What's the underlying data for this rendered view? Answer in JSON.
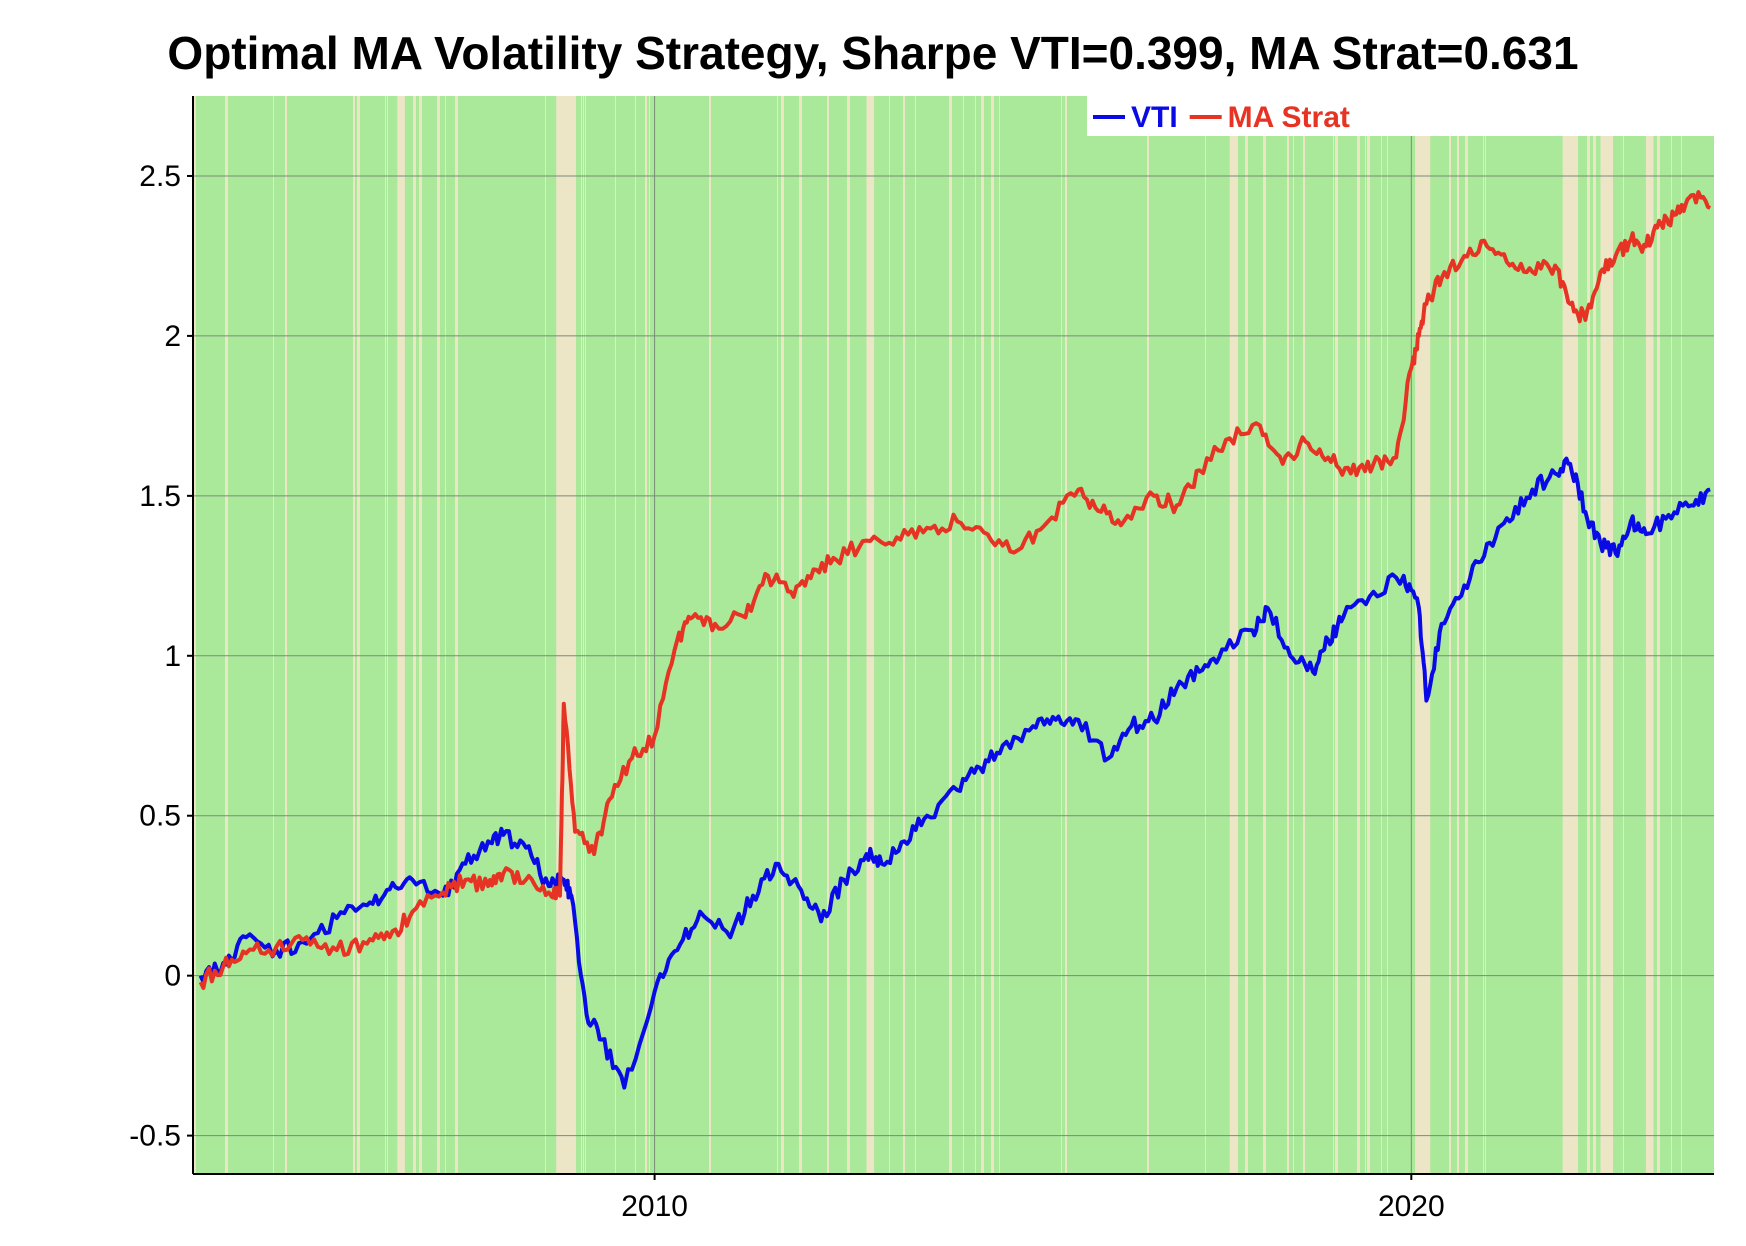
{
  "chart_data": {
    "type": "line",
    "title": "Optimal MA Volatility Strategy, Sharpe VTI=0.399, MA Strat=0.631",
    "xlabel": "",
    "ylabel": "",
    "xlim": [
      2003.9,
      2024.0
    ],
    "ylim": [
      -0.62,
      2.75
    ],
    "x_ticks": [
      2010,
      2020
    ],
    "y_ticks": [
      -0.5,
      0,
      0.5,
      1,
      1.5,
      2,
      2.5
    ],
    "y_tick_labels": [
      "-0.5",
      "0",
      "0.5",
      "1",
      "1.5",
      "2",
      "2.5"
    ],
    "grid": true,
    "legend_position": "top-right",
    "background_regime": {
      "in_market_color": "#abe99a",
      "out_of_market_color": "#ece6c7",
      "out_of_market_periods": [
        [
          2008.7,
          2008.95
        ],
        [
          2006.6,
          2006.7
        ],
        [
          2012.8,
          2012.9
        ],
        [
          2017.6,
          2017.7
        ],
        [
          2020.05,
          2020.25
        ],
        [
          2022.0,
          2022.2
        ],
        [
          2022.5,
          2022.65
        ],
        [
          2023.1,
          2023.2
        ]
      ]
    },
    "series": [
      {
        "name": "VTI",
        "color": "#0a0ae6",
        "x": [
          2004.0,
          2004.3,
          2004.6,
          2005.0,
          2005.4,
          2005.8,
          2006.2,
          2006.5,
          2006.8,
          2007.2,
          2007.5,
          2007.8,
          2008.0,
          2008.3,
          2008.6,
          2008.8,
          2008.9,
          2009.1,
          2009.3,
          2009.6,
          2010.0,
          2010.3,
          2010.6,
          2011.0,
          2011.3,
          2011.6,
          2011.9,
          2012.2,
          2012.5,
          2012.8,
          2013.0,
          2013.3,
          2013.6,
          2014.0,
          2014.3,
          2014.6,
          2015.0,
          2015.3,
          2015.6,
          2016.0,
          2016.3,
          2016.6,
          2016.9,
          2017.2,
          2017.5,
          2017.9,
          2018.1,
          2018.4,
          2018.7,
          2018.9,
          2019.1,
          2019.5,
          2019.9,
          2020.1,
          2020.2,
          2020.4,
          2020.7,
          2021.0,
          2021.3,
          2021.6,
          2021.9,
          2022.1,
          2022.3,
          2022.5,
          2022.7,
          2022.9,
          2023.1,
          2023.4,
          2023.7,
          2023.95
        ],
        "y": [
          0.0,
          0.04,
          0.12,
          0.08,
          0.1,
          0.18,
          0.22,
          0.27,
          0.3,
          0.25,
          0.35,
          0.42,
          0.44,
          0.4,
          0.28,
          0.3,
          0.25,
          -0.12,
          -0.2,
          -0.35,
          -0.05,
          0.08,
          0.2,
          0.12,
          0.25,
          0.35,
          0.28,
          0.17,
          0.3,
          0.38,
          0.35,
          0.42,
          0.5,
          0.58,
          0.65,
          0.72,
          0.78,
          0.8,
          0.8,
          0.68,
          0.78,
          0.8,
          0.9,
          0.95,
          1.02,
          1.08,
          1.15,
          1.0,
          0.95,
          1.05,
          1.12,
          1.2,
          1.25,
          1.15,
          0.86,
          1.1,
          1.22,
          1.35,
          1.42,
          1.52,
          1.57,
          1.6,
          1.45,
          1.35,
          1.32,
          1.42,
          1.38,
          1.44,
          1.47,
          1.52
        ]
      },
      {
        "name": "MA Strat",
        "color": "#e63323",
        "x": [
          2004.0,
          2004.3,
          2004.6,
          2005.0,
          2005.4,
          2005.8,
          2006.2,
          2006.5,
          2006.8,
          2007.2,
          2007.5,
          2007.8,
          2008.0,
          2008.3,
          2008.6,
          2008.75,
          2008.8,
          2008.95,
          2009.2,
          2009.4,
          2009.7,
          2010.0,
          2010.3,
          2010.5,
          2010.8,
          2011.2,
          2011.5,
          2011.8,
          2012.1,
          2012.4,
          2012.8,
          2013.2,
          2013.6,
          2014.0,
          2014.4,
          2014.8,
          2015.2,
          2015.6,
          2015.9,
          2016.2,
          2016.6,
          2016.9,
          2017.2,
          2017.6,
          2018.0,
          2018.3,
          2018.6,
          2018.9,
          2019.2,
          2019.5,
          2019.8,
          2020.0,
          2020.1,
          2020.2,
          2020.4,
          2020.7,
          2021.0,
          2021.3,
          2021.6,
          2021.9,
          2022.1,
          2022.3,
          2022.5,
          2022.7,
          2022.9,
          2023.1,
          2023.3,
          2023.5,
          2023.7,
          2023.95
        ],
        "y": [
          -0.02,
          0.03,
          0.07,
          0.09,
          0.12,
          0.08,
          0.1,
          0.12,
          0.2,
          0.26,
          0.3,
          0.28,
          0.32,
          0.3,
          0.26,
          0.25,
          0.85,
          0.45,
          0.38,
          0.55,
          0.68,
          0.75,
          1.05,
          1.12,
          1.1,
          1.12,
          1.25,
          1.2,
          1.27,
          1.3,
          1.36,
          1.37,
          1.4,
          1.42,
          1.38,
          1.33,
          1.42,
          1.52,
          1.45,
          1.42,
          1.5,
          1.47,
          1.58,
          1.68,
          1.72,
          1.6,
          1.67,
          1.62,
          1.57,
          1.6,
          1.62,
          1.9,
          2.0,
          2.1,
          2.18,
          2.25,
          2.28,
          2.22,
          2.2,
          2.22,
          2.1,
          2.05,
          2.2,
          2.25,
          2.3,
          2.28,
          2.35,
          2.38,
          2.44,
          2.4
        ]
      }
    ]
  }
}
